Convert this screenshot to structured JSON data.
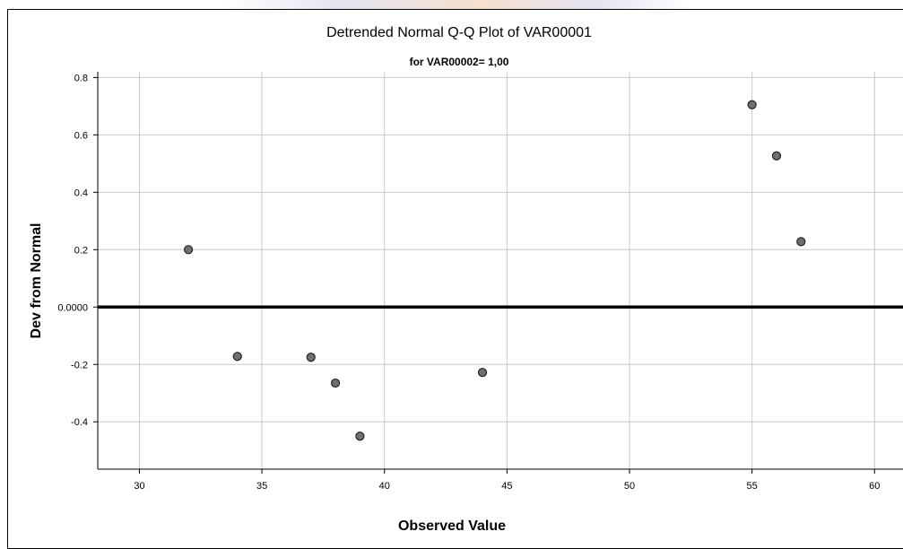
{
  "chart_data": {
    "type": "scatter",
    "title": "Detrended Normal Q-Q Plot of VAR00001",
    "subtitle": "for VAR00002= 1,00",
    "xlabel": "Observed Value",
    "ylabel": "Dev from Normal",
    "xlim": [
      28.3,
      61.6
    ],
    "ylim": [
      -0.565,
      0.82
    ],
    "x_ticks": [
      30,
      35,
      40,
      45,
      50,
      55,
      60
    ],
    "y_ticks": [
      {
        "value": 0.8,
        "label": "0.8"
      },
      {
        "value": 0.6,
        "label": "0.6"
      },
      {
        "value": 0.4,
        "label": "0.4"
      },
      {
        "value": 0.2,
        "label": "0.2"
      },
      {
        "value": 0.0,
        "label": "0.0000"
      },
      {
        "value": -0.2,
        "label": "-0.2"
      },
      {
        "value": -0.4,
        "label": "-0.4"
      }
    ],
    "reference_line": 0,
    "grid": true,
    "points": [
      {
        "x": 32,
        "y": 0.2
      },
      {
        "x": 34,
        "y": -0.172
      },
      {
        "x": 37,
        "y": -0.175
      },
      {
        "x": 38,
        "y": -0.265
      },
      {
        "x": 39,
        "y": -0.45
      },
      {
        "x": 44,
        "y": -0.228
      },
      {
        "x": 55,
        "y": 0.705
      },
      {
        "x": 56,
        "y": 0.527
      },
      {
        "x": 57,
        "y": 0.228
      }
    ],
    "colors": {
      "point_fill": "#707070",
      "point_stroke": "#202020",
      "grid": "#c8c8c8",
      "reference": "#000000"
    }
  }
}
